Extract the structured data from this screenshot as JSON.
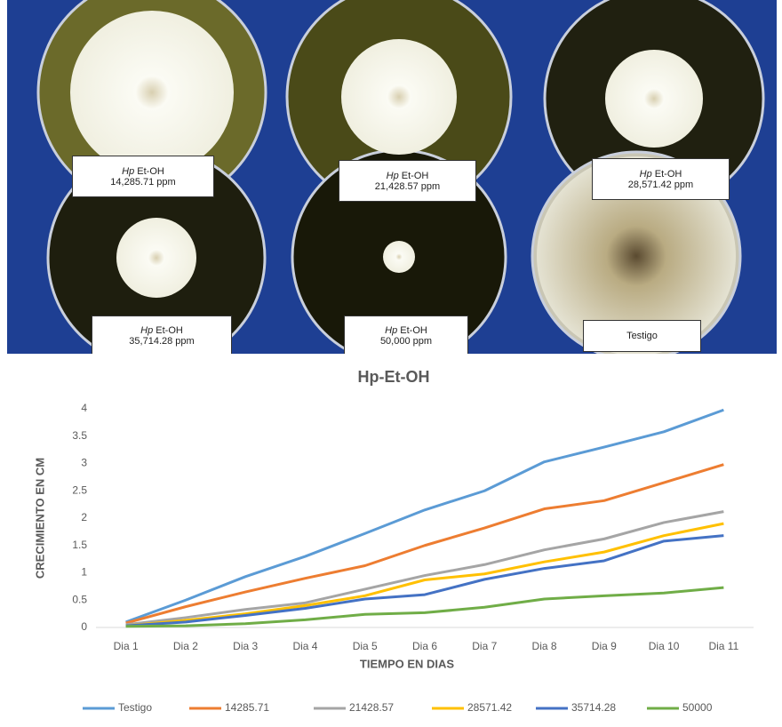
{
  "photo": {
    "plates": [
      {
        "species": "Hp",
        "extract": "Et-OH",
        "concentration": "14,285.71 ppm"
      },
      {
        "species": "Hp",
        "extract": "Et-OH",
        "concentration": "21,428.57 ppm"
      },
      {
        "species": "Hp",
        "extract": "Et-OH",
        "concentration": "28,571.42 ppm"
      },
      {
        "species": "Hp",
        "extract": "Et-OH",
        "concentration": "35,714.28 ppm"
      },
      {
        "species": "Hp",
        "extract": "Et-OH",
        "concentration": "50,000 ppm"
      }
    ],
    "control": "Testigo"
  },
  "chart_data": {
    "type": "line",
    "title": "Hp-Et-OH",
    "x_label": "TIEMPO EN DIAS",
    "y_label": "CRECIMIENTO EN CM",
    "categories": [
      "Dia 1",
      "Dia 2",
      "Dia 3",
      "Dia 4",
      "Dia 5",
      "Dia 6",
      "Dia 7",
      "Dia 8",
      "Dia 9",
      "Dia 10",
      "Dia 11"
    ],
    "series": [
      {
        "name": "Testigo",
        "color": "#5b9bd5",
        "values": [
          0.1,
          0.5,
          0.93,
          1.3,
          1.72,
          2.15,
          2.5,
          3.03,
          3.3,
          3.58,
          3.98
        ]
      },
      {
        "name": "14285.71",
        "color": "#ed7d31",
        "values": [
          0.08,
          0.38,
          0.65,
          0.9,
          1.13,
          1.5,
          1.82,
          2.17,
          2.32,
          2.65,
          2.98
        ]
      },
      {
        "name": "21428.57",
        "color": "#a5a5a5",
        "values": [
          0.05,
          0.18,
          0.33,
          0.45,
          0.7,
          0.95,
          1.15,
          1.42,
          1.62,
          1.92,
          2.12
        ]
      },
      {
        "name": "28571.42",
        "color": "#ffc000",
        "values": [
          0.03,
          0.13,
          0.25,
          0.4,
          0.58,
          0.87,
          0.98,
          1.2,
          1.38,
          1.68,
          1.9
        ]
      },
      {
        "name": "35714.28",
        "color": "#4472c4",
        "values": [
          0.03,
          0.1,
          0.22,
          0.35,
          0.52,
          0.6,
          0.88,
          1.08,
          1.22,
          1.58,
          1.68
        ]
      },
      {
        "name": "50000",
        "color": "#70ad47",
        "values": [
          0.02,
          0.03,
          0.07,
          0.14,
          0.24,
          0.27,
          0.37,
          0.52,
          0.58,
          0.63,
          0.73
        ]
      }
    ],
    "ylim": [
      0,
      4
    ],
    "yticks": [
      0,
      0.5,
      1,
      1.5,
      2,
      2.5,
      3,
      3.5,
      4
    ],
    "grid": false,
    "legend": "bottom"
  }
}
